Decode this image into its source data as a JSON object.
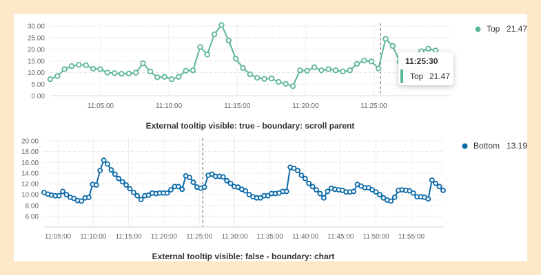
{
  "chart_data": [
    {
      "type": "line",
      "title": "",
      "caption": "External tooltip visible: true - boundary: scroll parent",
      "color": "#5ab693",
      "ylim": [
        0,
        30
      ],
      "y_ticks": [
        "0.00",
        "5.00",
        "10.00",
        "15.00",
        "20.00",
        "25.00",
        "30.00"
      ],
      "x_ticks": [
        "11:05:00",
        "11:10:00",
        "11:15:00",
        "11:20:00",
        "11:25:00"
      ],
      "x_start_min": 0,
      "x_end_min": 28.5,
      "legend": {
        "name": "Top",
        "value": "21.47",
        "position": "top-right"
      },
      "crosshair_time": "11:25:30",
      "tooltip": {
        "title": "11:25:30",
        "label": "Top",
        "value": "21.47"
      },
      "series": [
        {
          "name": "Top",
          "values": [
            7.2,
            8.5,
            11.5,
            12.8,
            13.4,
            13.2,
            11.7,
            11.5,
            10.0,
            9.8,
            9.5,
            9.6,
            10.0,
            14.0,
            10.5,
            8.0,
            8.2,
            7.2,
            8.2,
            10.8,
            11.0,
            21.0,
            17.8,
            26.5,
            30.5,
            23.8,
            16.0,
            12.0,
            9.3,
            7.8,
            7.3,
            7.5,
            6.0,
            5.2,
            4.2,
            11.0,
            10.8,
            12.3,
            11.0,
            11.5,
            11.0,
            10.5,
            11.0,
            13.8,
            15.2,
            14.8,
            11.8,
            24.5,
            21.47,
            14.6,
            11.0,
            10.2,
            19.2,
            20.3,
            19.5
          ]
        }
      ]
    },
    {
      "type": "line",
      "title": "",
      "caption": "External tooltip visible: false - boundary: chart",
      "color": "#0868a8",
      "ylim": [
        4,
        20
      ],
      "y_ticks": [
        "6.00",
        "8.00",
        "10.00",
        "12.00",
        "14.00",
        "16.00",
        "18.00",
        "20.00"
      ],
      "x_ticks": [
        "11:05:00",
        "11:10:00",
        "11:15:00",
        "11:20:00",
        "11:25:00",
        "11:30:00",
        "11:35:00",
        "11:40:00",
        "11:45:00",
        "11:50:00",
        "11:55:00"
      ],
      "x_start_min": 0,
      "x_end_min": 54.5,
      "legend": {
        "name": "Bottom",
        "value": "13.19",
        "position": "top-right"
      },
      "crosshair_time": "11:25:30",
      "series": [
        {
          "name": "Bottom",
          "values": [
            10.4,
            10.1,
            9.9,
            9.8,
            9.8,
            10.6,
            10.0,
            9.5,
            9.3,
            8.9,
            8.8,
            9.4,
            9.5,
            11.9,
            11.8,
            14.5,
            16.4,
            15.7,
            14.6,
            13.8,
            13.0,
            12.4,
            11.8,
            11.1,
            10.4,
            9.8,
            9.1,
            9.8,
            9.9,
            10.3,
            10.2,
            10.3,
            10.3,
            10.3,
            10.9,
            11.5,
            11.5,
            11.0,
            13.5,
            13.2,
            12.3,
            11.4,
            11.2,
            11.4,
            13.6,
            13.8,
            13.4,
            13.4,
            13.3,
            12.6,
            12.1,
            11.5,
            11.4,
            11.0,
            10.7,
            10.0,
            9.6,
            9.4,
            9.4,
            9.8,
            9.8,
            10.2,
            10.2,
            10.3,
            10.6,
            10.6,
            15.1,
            14.9,
            14.5,
            13.6,
            13.0,
            12.1,
            11.5,
            10.9,
            10.2,
            9.4,
            10.6,
            11.2,
            11.0,
            10.9,
            10.8,
            10.5,
            10.5,
            10.6,
            11.9,
            11.6,
            11.3,
            11.3,
            10.9,
            10.5,
            10.0,
            9.4,
            9.0,
            8.8,
            9.5,
            10.8,
            10.9,
            10.8,
            10.7,
            10.3,
            9.6,
            9.6,
            9.5,
            9.2,
            12.7,
            12.1,
            11.5,
            10.8
          ]
        }
      ]
    }
  ]
}
